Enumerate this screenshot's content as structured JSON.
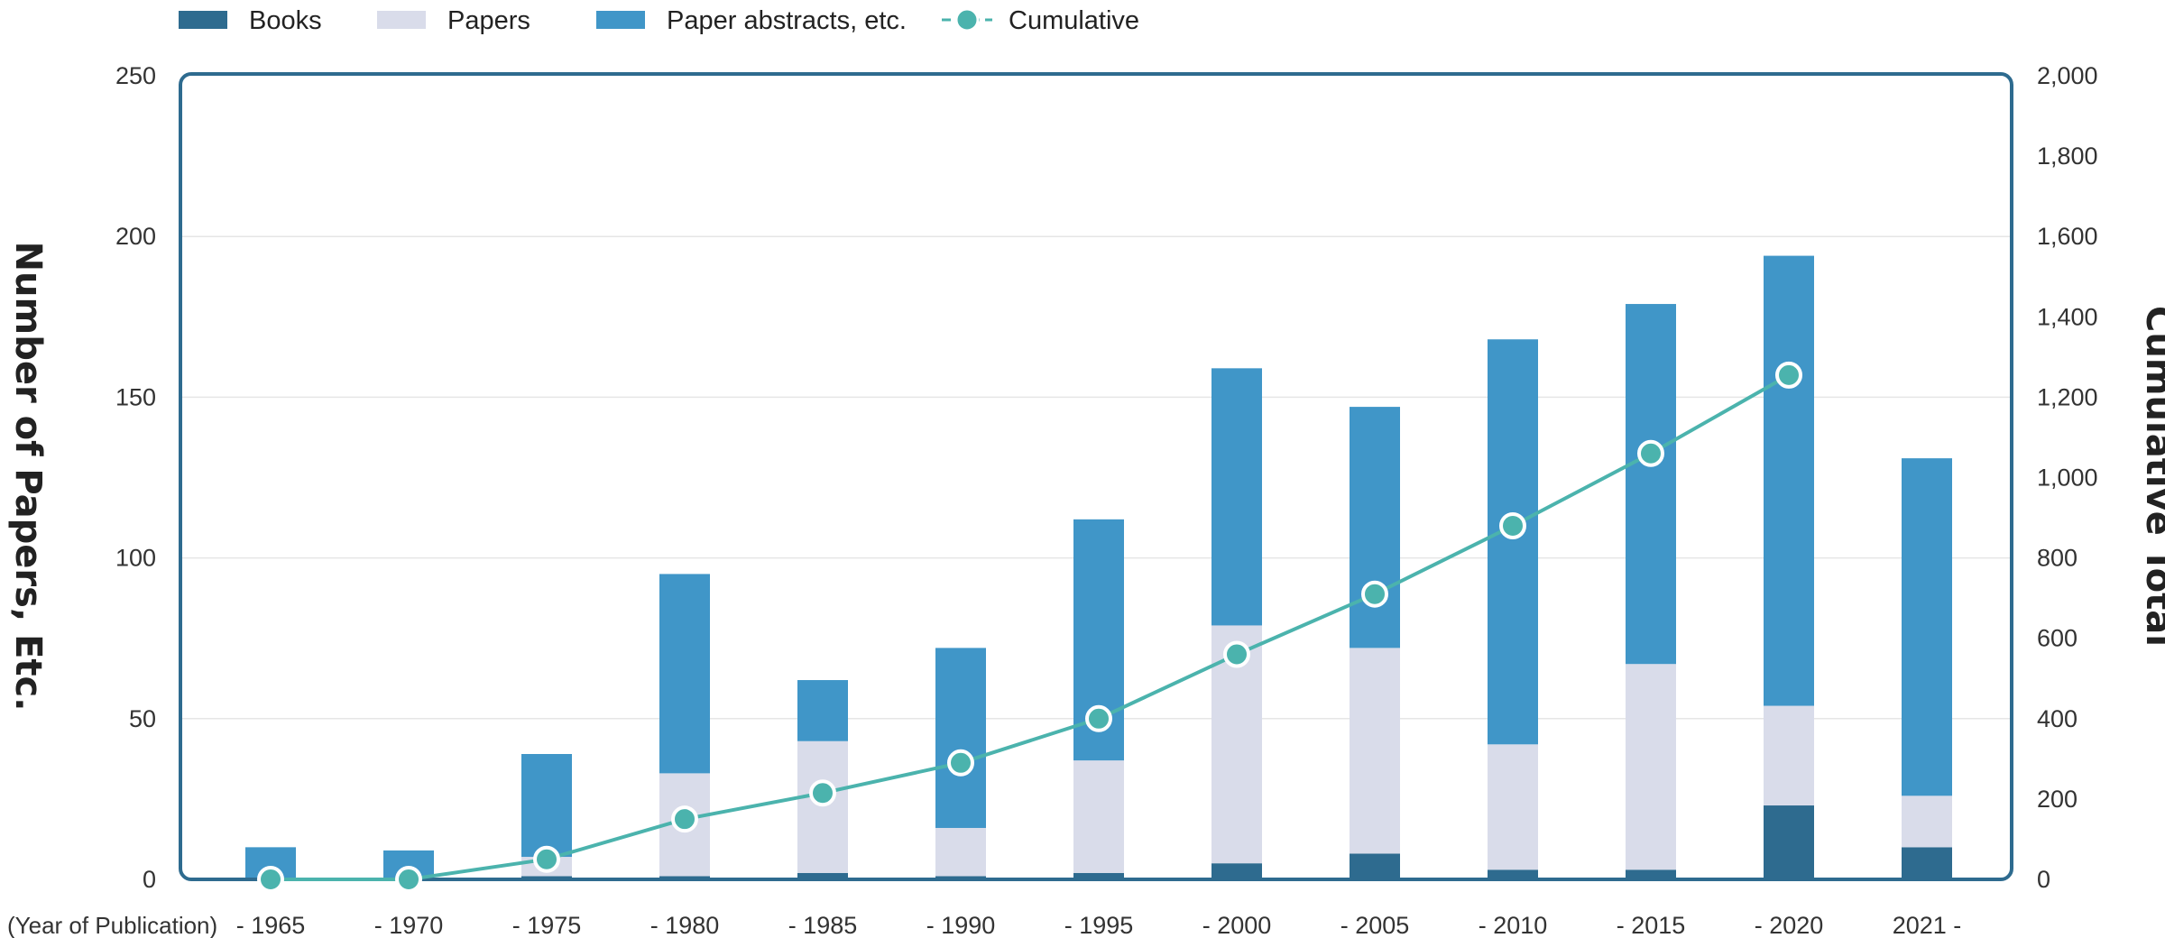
{
  "chart_data": {
    "type": "bar",
    "stacked": true,
    "categories": [
      "- 1965",
      "- 1970",
      "- 1975",
      "- 1980",
      "- 1985",
      "- 1990",
      "- 1995",
      "- 2000",
      "- 2005",
      "- 2010",
      "- 2015",
      "- 2020",
      "2021 -"
    ],
    "x_note": "(Year of Publication)",
    "ylabel": "Number of Papers, Etc.",
    "y2label": "Cumulative Total",
    "ylim": [
      0,
      250
    ],
    "y2lim": [
      0,
      2000
    ],
    "yticks": [
      "0",
      "50",
      "100",
      "150",
      "200",
      "250"
    ],
    "y2ticks": [
      "0",
      "200",
      "400",
      "600",
      "800",
      "1,000",
      "1,200",
      "1,400",
      "1,600",
      "1,800",
      "2,000"
    ],
    "grid": true,
    "legend_position": "top-left",
    "series": [
      {
        "name": "Books",
        "kind": "bar",
        "color": "#2e6b8f",
        "values": [
          0,
          0,
          1,
          1,
          2,
          1,
          2,
          5,
          8,
          3,
          3,
          23,
          10
        ]
      },
      {
        "name": "Papers",
        "kind": "bar",
        "color": "#d9dcea",
        "values": [
          0,
          0,
          6,
          32,
          41,
          15,
          35,
          74,
          64,
          39,
          64,
          31,
          16
        ]
      },
      {
        "name": "Paper abstracts, etc.",
        "kind": "bar",
        "color": "#4096c8",
        "values": [
          10,
          9,
          32,
          62,
          19,
          56,
          75,
          80,
          75,
          126,
          112,
          140,
          105
        ]
      },
      {
        "name": "Cumulative",
        "kind": "line",
        "axis": "right",
        "color": "#4bb3ad",
        "values": [
          0,
          0,
          50,
          150,
          215,
          290,
          400,
          560,
          710,
          880,
          1060,
          1255,
          null
        ]
      }
    ]
  }
}
